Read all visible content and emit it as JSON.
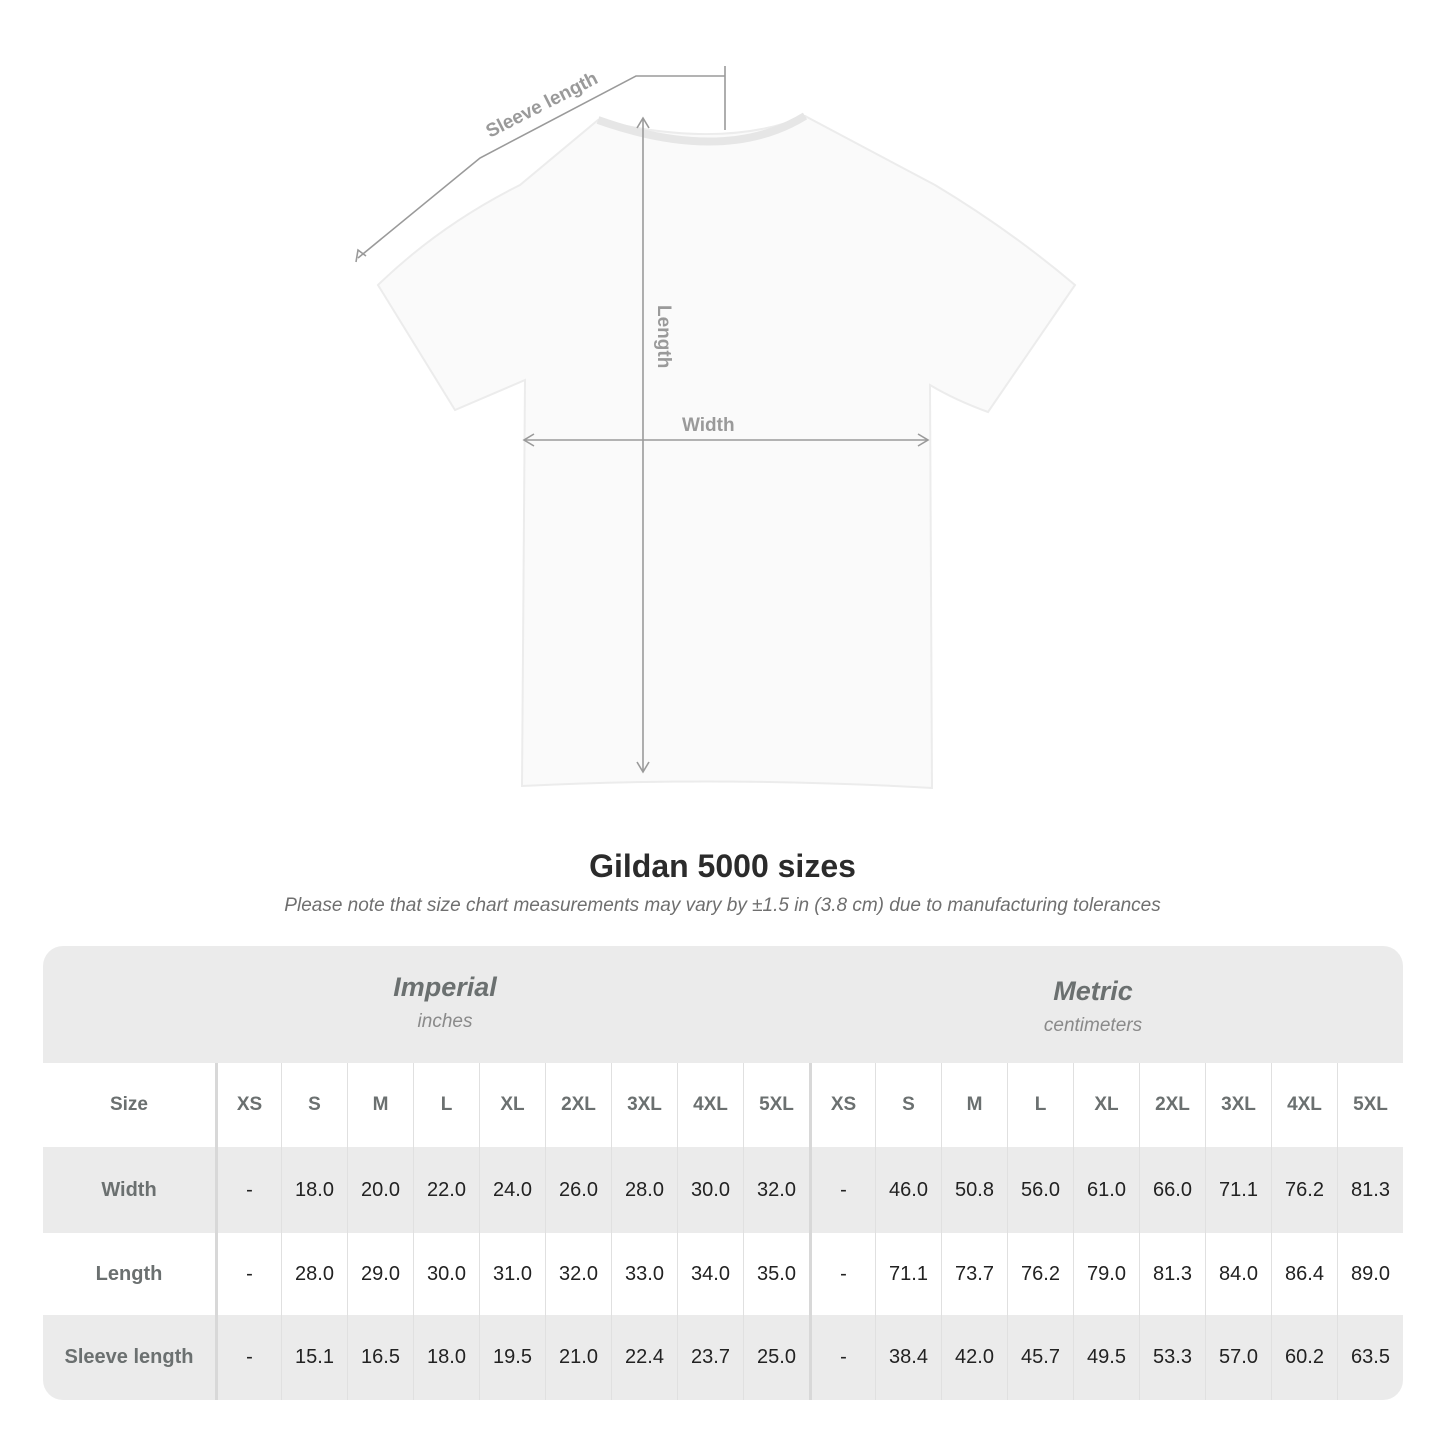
{
  "diagram": {
    "sleeve_label": "Sleeve length",
    "length_label": "Length",
    "width_label": "Width"
  },
  "title": "Gildan 5000 sizes",
  "note": "Please note that size chart measurements may vary by ±1.5 in (3.8 cm) due to manufacturing tolerances",
  "imperial": {
    "name": "Imperial",
    "unit": "inches"
  },
  "metric": {
    "name": "Metric",
    "unit": "centimeters"
  },
  "header": {
    "label": "Size",
    "sizes": [
      "XS",
      "S",
      "M",
      "L",
      "XL",
      "2XL",
      "3XL",
      "4XL",
      "5XL",
      "XS",
      "S",
      "M",
      "L",
      "XL",
      "2XL",
      "3XL",
      "4XL",
      "5XL"
    ]
  },
  "rows": [
    {
      "label": "Width",
      "values": [
        "-",
        "18.0",
        "20.0",
        "22.0",
        "24.0",
        "26.0",
        "28.0",
        "30.0",
        "32.0",
        "-",
        "46.0",
        "50.8",
        "56.0",
        "61.0",
        "66.0",
        "71.1",
        "76.2",
        "81.3"
      ]
    },
    {
      "label": "Length",
      "values": [
        "-",
        "28.0",
        "29.0",
        "30.0",
        "31.0",
        "32.0",
        "33.0",
        "34.0",
        "35.0",
        "-",
        "71.1",
        "73.7",
        "76.2",
        "79.0",
        "81.3",
        "84.0",
        "86.4",
        "89.0"
      ]
    },
    {
      "label": "Sleeve length",
      "values": [
        "-",
        "15.1",
        "16.5",
        "18.0",
        "19.5",
        "21.0",
        "22.4",
        "23.7",
        "25.0",
        "-",
        "38.4",
        "42.0",
        "45.7",
        "49.5",
        "53.3",
        "57.0",
        "60.2",
        "63.5"
      ]
    }
  ]
}
